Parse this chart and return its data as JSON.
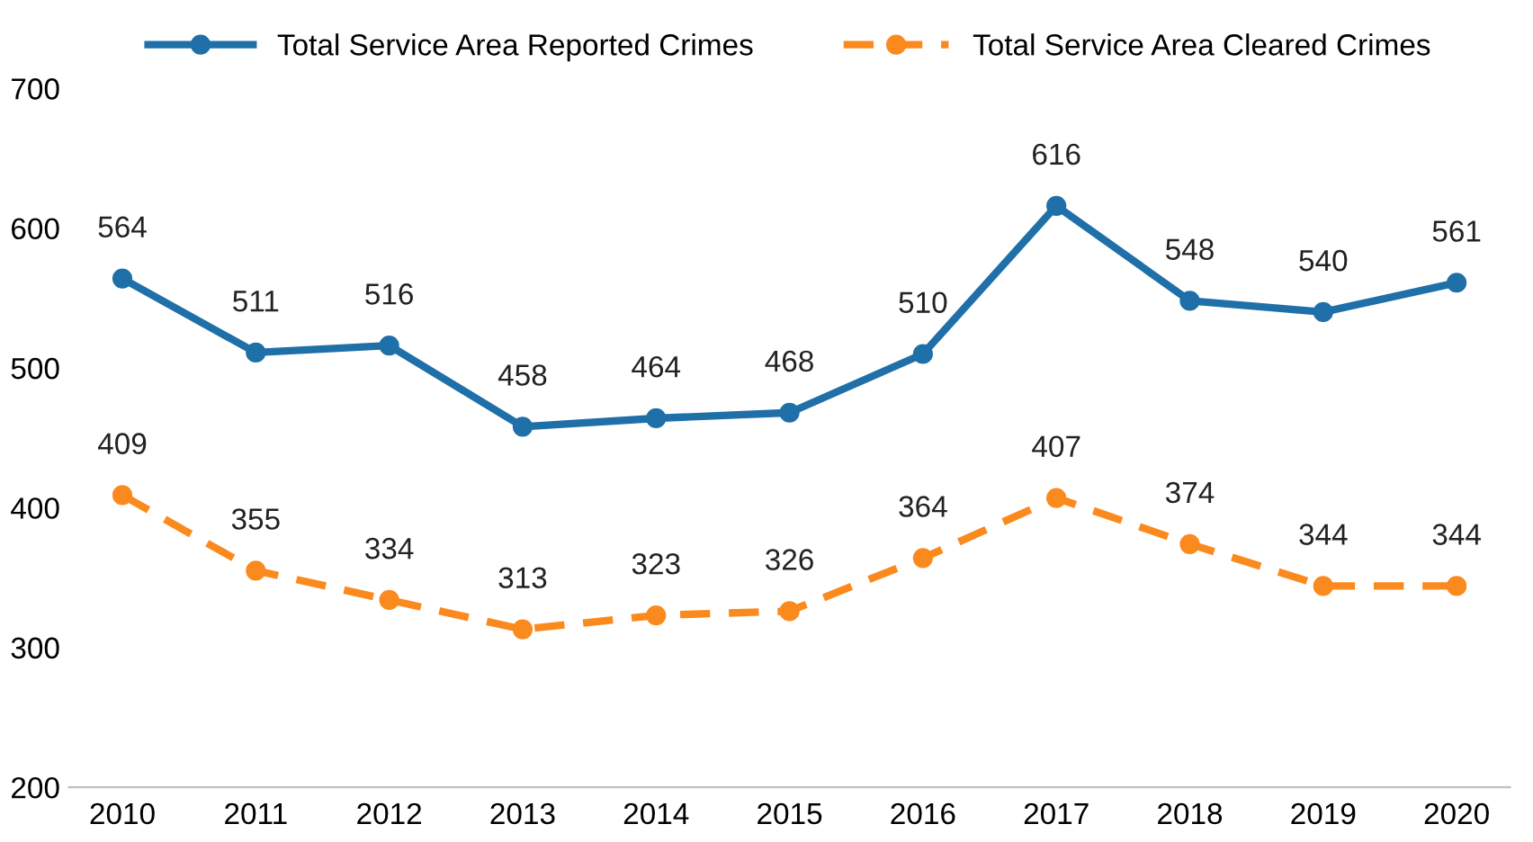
{
  "chart_data": {
    "type": "line",
    "categories": [
      "2010",
      "2011",
      "2012",
      "2013",
      "2014",
      "2015",
      "2016",
      "2017",
      "2018",
      "2019",
      "2020"
    ],
    "series": [
      {
        "name": "Total Service Area Reported Crimes",
        "color": "#1f6fa8",
        "line_style": "solid",
        "values": [
          564,
          511,
          516,
          458,
          464,
          468,
          510,
          616,
          548,
          540,
          561
        ]
      },
      {
        "name": "Total Service Area Cleared Crimes",
        "color": "#fb8a1e",
        "line_style": "dashed",
        "values": [
          409,
          355,
          334,
          313,
          323,
          326,
          364,
          407,
          374,
          344,
          344
        ]
      }
    ],
    "ylim": [
      200,
      700
    ],
    "yticks": [
      200,
      300,
      400,
      500,
      600,
      700
    ],
    "marker": "circle",
    "data_labels": true,
    "grid": false,
    "legend": "top"
  }
}
